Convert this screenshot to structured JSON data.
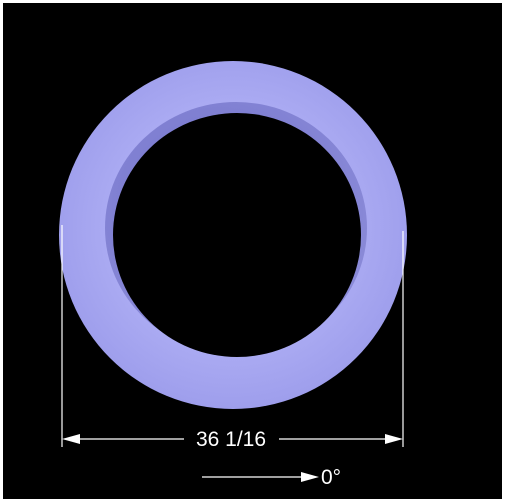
{
  "photo": {
    "background": "#000000",
    "ring_color": "#aaaaf2",
    "ring_shadow_color": "#7a7ad0",
    "annotation_color": "#ffffff"
  },
  "measurement": {
    "diameter_label": "36 1/16"
  },
  "orientation": {
    "angle_label": "0°",
    "arrow_icon": "right-arrow-icon"
  }
}
